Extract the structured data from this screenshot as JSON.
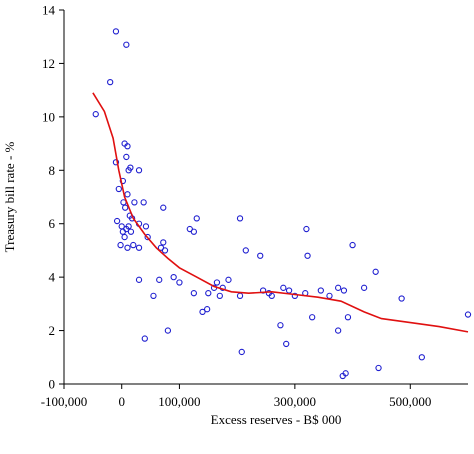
{
  "chart_data": {
    "type": "scatter",
    "xlabel": "Excess reserves - B$ 000",
    "ylabel": "Treasury bill rate - %",
    "xlim": [
      -100000,
      600000
    ],
    "ylim": [
      0,
      14
    ],
    "x_ticks": [
      -100000,
      0,
      100000,
      300000,
      500000
    ],
    "x_tick_labels": [
      "-100,000",
      "0",
      "100,000",
      "300,000",
      "500,000"
    ],
    "y_ticks": [
      0,
      2,
      4,
      6,
      8,
      10,
      12,
      14
    ],
    "y_tick_labels": [
      "0",
      "2",
      "4",
      "6",
      "8",
      "10",
      "12",
      "14"
    ],
    "grid": false,
    "colors": {
      "points": "#1f1fd0",
      "trend": "#e01010"
    },
    "series": [
      {
        "type": "scatter",
        "points": [
          [
            -45000,
            10.1
          ],
          [
            -20000,
            11.3
          ],
          [
            -10000,
            13.2
          ],
          [
            8000,
            12.7
          ],
          [
            -10000,
            8.3
          ],
          [
            -5000,
            7.3
          ],
          [
            2000,
            7.6
          ],
          [
            5000,
            9.0
          ],
          [
            8000,
            8.5
          ],
          [
            10000,
            8.9
          ],
          [
            12000,
            8.0
          ],
          [
            15000,
            8.1
          ],
          [
            3000,
            6.8
          ],
          [
            6000,
            6.6
          ],
          [
            10000,
            7.1
          ],
          [
            14000,
            6.3
          ],
          [
            18000,
            6.2
          ],
          [
            -8000,
            6.1
          ],
          [
            0,
            5.9
          ],
          [
            2000,
            5.7
          ],
          [
            5000,
            5.5
          ],
          [
            8000,
            5.8
          ],
          [
            12000,
            5.9
          ],
          [
            16000,
            5.7
          ],
          [
            -2000,
            5.2
          ],
          [
            10000,
            5.1
          ],
          [
            20000,
            5.2
          ],
          [
            22000,
            6.8
          ],
          [
            30000,
            6.0
          ],
          [
            38000,
            6.8
          ],
          [
            42000,
            5.9
          ],
          [
            30000,
            5.1
          ],
          [
            30000,
            8.0
          ],
          [
            45000,
            5.5
          ],
          [
            55000,
            3.3
          ],
          [
            65000,
            3.9
          ],
          [
            68000,
            5.1
          ],
          [
            72000,
            5.3
          ],
          [
            75000,
            5.0
          ],
          [
            72000,
            6.6
          ],
          [
            90000,
            4.0
          ],
          [
            100000,
            3.8
          ],
          [
            118000,
            5.8
          ],
          [
            125000,
            5.7
          ],
          [
            130000,
            6.2
          ],
          [
            125000,
            3.4
          ],
          [
            140000,
            2.7
          ],
          [
            148000,
            2.8
          ],
          [
            150000,
            3.4
          ],
          [
            160000,
            3.6
          ],
          [
            165000,
            3.8
          ],
          [
            170000,
            3.3
          ],
          [
            175000,
            3.6
          ],
          [
            185000,
            3.9
          ],
          [
            205000,
            3.3
          ],
          [
            215000,
            5.0
          ],
          [
            205000,
            6.2
          ],
          [
            240000,
            4.8
          ],
          [
            245000,
            3.5
          ],
          [
            255000,
            3.4
          ],
          [
            260000,
            3.3
          ],
          [
            275000,
            2.2
          ],
          [
            280000,
            3.6
          ],
          [
            285000,
            1.5
          ],
          [
            290000,
            3.5
          ],
          [
            300000,
            3.3
          ],
          [
            318000,
            3.4
          ],
          [
            322000,
            4.8
          ],
          [
            320000,
            5.8
          ],
          [
            330000,
            2.5
          ],
          [
            345000,
            3.5
          ],
          [
            360000,
            3.3
          ],
          [
            375000,
            3.6
          ],
          [
            375000,
            2.0
          ],
          [
            385000,
            3.5
          ],
          [
            392000,
            2.5
          ],
          [
            400000,
            5.2
          ],
          [
            420000,
            3.6
          ],
          [
            440000,
            4.2
          ],
          [
            445000,
            0.6
          ],
          [
            485000,
            3.2
          ],
          [
            520000,
            1.0
          ],
          [
            40000,
            1.7
          ],
          [
            80000,
            2.0
          ],
          [
            30000,
            3.9
          ],
          [
            208000,
            1.2
          ],
          [
            383000,
            0.3
          ],
          [
            388000,
            0.4
          ],
          [
            600000,
            2.6
          ]
        ]
      },
      {
        "type": "line",
        "x": [
          -50000,
          -30000,
          -15000,
          -5000,
          5000,
          20000,
          40000,
          60000,
          80000,
          100000,
          130000,
          160000,
          190000,
          220000,
          260000,
          300000,
          340000,
          380000,
          420000,
          450000,
          500000,
          550000,
          600000
        ],
        "y": [
          10.9,
          10.2,
          9.2,
          8.0,
          7.0,
          6.2,
          5.6,
          5.1,
          4.7,
          4.35,
          4.0,
          3.65,
          3.45,
          3.4,
          3.45,
          3.35,
          3.25,
          3.1,
          2.7,
          2.45,
          2.3,
          2.15,
          1.95
        ]
      }
    ]
  }
}
